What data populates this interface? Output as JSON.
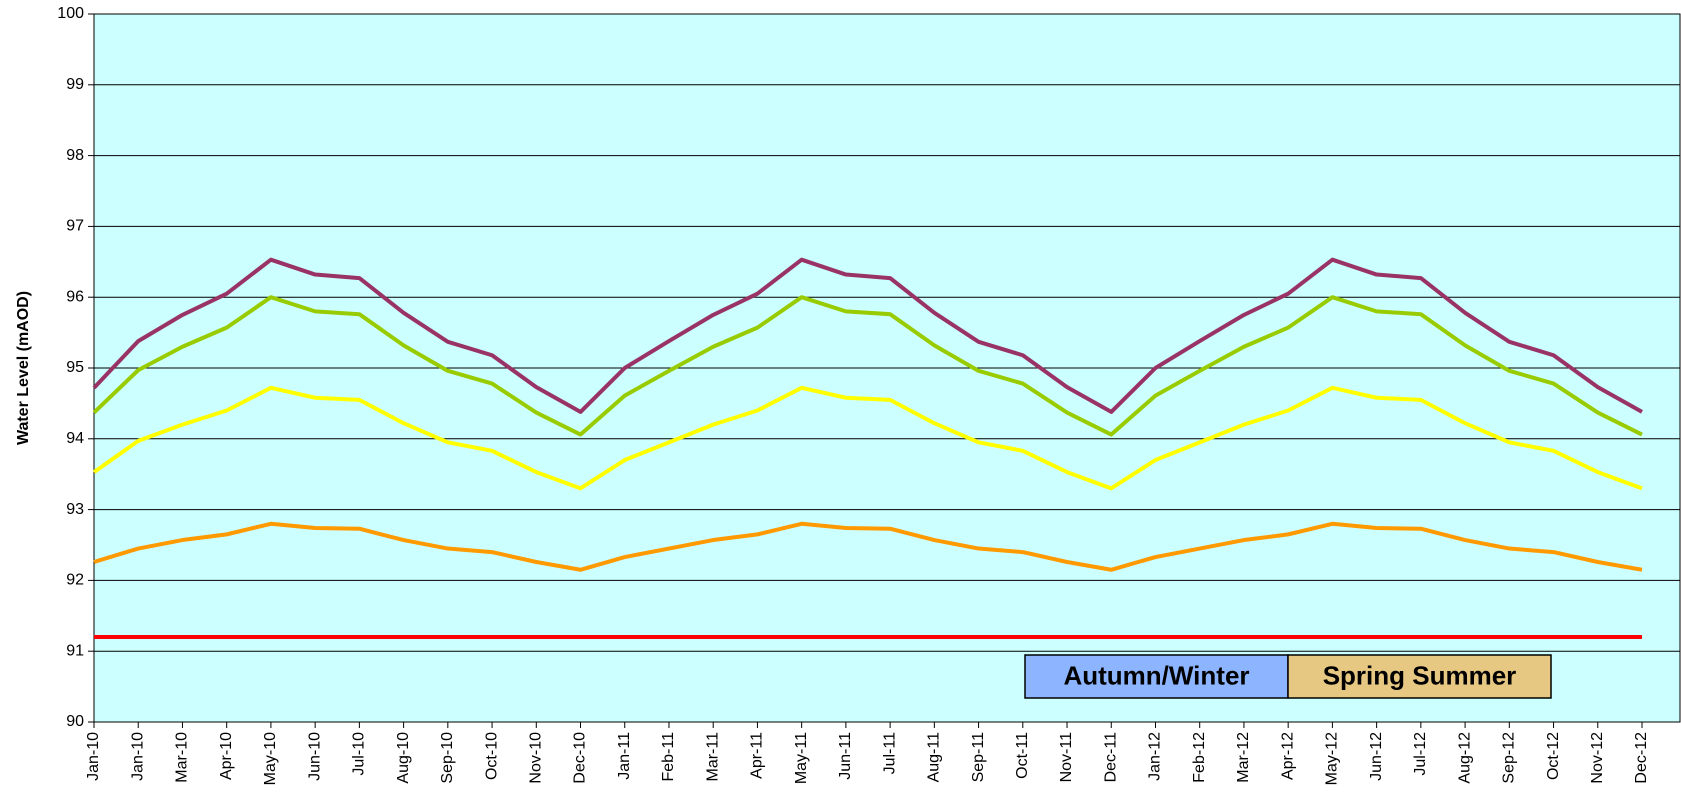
{
  "chart_data": {
    "type": "line",
    "y_label": "Water Level (mAOD)",
    "categories": [
      "Jan-10",
      "Jan-10",
      "Mar-10",
      "Apr-10",
      "May-10",
      "Jun-10",
      "Jul-10",
      "Aug-10",
      "Sep-10",
      "Oct-10",
      "Nov-10",
      "Dec-10",
      "Jan-11",
      "Feb-11",
      "Mar-11",
      "Apr-11",
      "May-11",
      "Jun-11",
      "Jul-11",
      "Aug-11",
      "Sep-11",
      "Oct-11",
      "Nov-11",
      "Dec-11",
      "Jan-12",
      "Feb-12",
      "Mar-12",
      "Apr-12",
      "May-12",
      "Jun-12",
      "Jul-12",
      "Aug-12",
      "Sep-12",
      "Oct-12",
      "Nov-12",
      "Dec-12"
    ],
    "series": [
      {
        "color": "#993366",
        "values": [
          94.72,
          95.38,
          95.75,
          96.05,
          96.53,
          96.32,
          96.27,
          95.78,
          95.37,
          95.18,
          94.73,
          94.38,
          95.0,
          95.38,
          95.75,
          96.05,
          96.53,
          96.32,
          96.27,
          95.78,
          95.37,
          95.18,
          94.73,
          94.38,
          95.0,
          95.38,
          95.75,
          96.05,
          96.53,
          96.32,
          96.27,
          95.78,
          95.37,
          95.18,
          94.73,
          94.38
        ]
      },
      {
        "color": "#99cc00",
        "values": [
          94.37,
          94.97,
          95.3,
          95.57,
          96.0,
          95.8,
          95.76,
          95.32,
          94.96,
          94.78,
          94.37,
          94.06,
          94.61,
          94.96,
          95.3,
          95.57,
          96.0,
          95.8,
          95.76,
          95.32,
          94.96,
          94.78,
          94.37,
          94.06,
          94.61,
          94.96,
          95.3,
          95.57,
          96.0,
          95.8,
          95.76,
          95.32,
          94.96,
          94.78,
          94.37,
          94.06
        ]
      },
      {
        "color": "#ffff00",
        "values": [
          93.53,
          93.97,
          94.2,
          94.4,
          94.72,
          94.58,
          94.55,
          94.22,
          93.95,
          93.83,
          93.53,
          93.3,
          93.7,
          93.95,
          94.2,
          94.4,
          94.72,
          94.58,
          94.55,
          94.22,
          93.95,
          93.83,
          93.53,
          93.3,
          93.7,
          93.95,
          94.2,
          94.4,
          94.72,
          94.58,
          94.55,
          94.22,
          93.95,
          93.83,
          93.53,
          93.3
        ]
      },
      {
        "color": "#ff9900",
        "values": [
          92.26,
          92.45,
          92.57,
          92.65,
          92.8,
          92.74,
          92.73,
          92.57,
          92.45,
          92.4,
          92.26,
          92.15,
          92.33,
          92.45,
          92.57,
          92.65,
          92.8,
          92.74,
          92.73,
          92.57,
          92.45,
          92.4,
          92.26,
          92.15,
          92.33,
          92.45,
          92.57,
          92.65,
          92.8,
          92.74,
          92.73,
          92.57,
          92.45,
          92.4,
          92.26,
          92.15
        ]
      },
      {
        "color": "#ff0000",
        "values": [
          91.2,
          91.2,
          91.2,
          91.2,
          91.2,
          91.2,
          91.2,
          91.2,
          91.2,
          91.2,
          91.2,
          91.2,
          91.2,
          91.2,
          91.2,
          91.2,
          91.2,
          91.2,
          91.2,
          91.2,
          91.2,
          91.2,
          91.2,
          91.2,
          91.2,
          91.2,
          91.2,
          91.2,
          91.2,
          91.2,
          91.2,
          91.2,
          91.2,
          91.2,
          91.2,
          91.2
        ]
      }
    ],
    "ylim": [
      90,
      100
    ],
    "yticks": [
      90,
      91,
      92,
      93,
      94,
      95,
      96,
      97,
      98,
      99,
      100
    ],
    "grid": true,
    "annotations": [
      {
        "text": "Autumn/Winter",
        "color": "#8db4ff"
      },
      {
        "text": "Spring Summer",
        "color": "#e6c882"
      }
    ],
    "plot_background": "#ccffff"
  }
}
